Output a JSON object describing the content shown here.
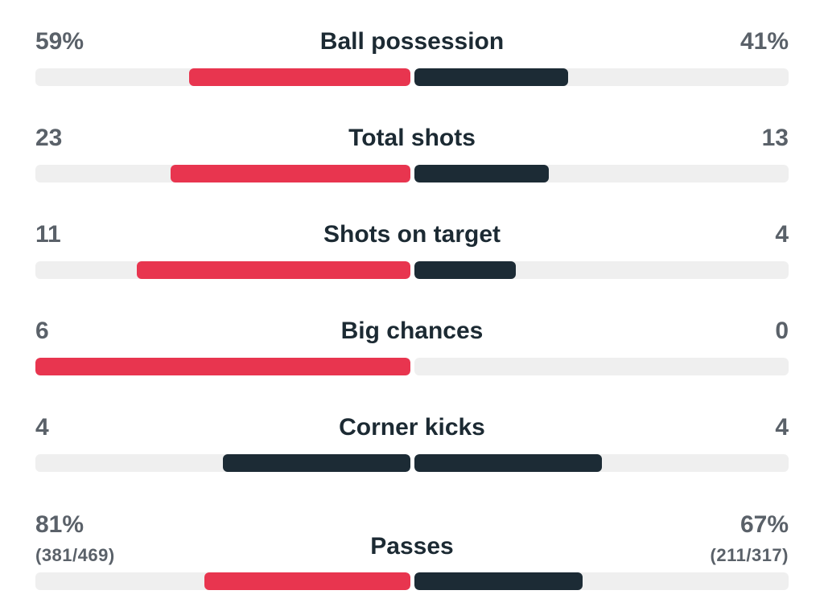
{
  "colors": {
    "home": "#e8354f",
    "away": "#1c2b35",
    "track": "#efefef"
  },
  "stats": [
    {
      "label": "Ball possession",
      "home_value": "59%",
      "away_value": "41%",
      "home_bar": 0.59,
      "away_bar": 0.41,
      "home_color": "#e8354f",
      "away_color": "#1c2b35"
    },
    {
      "label": "Total shots",
      "home_value": "23",
      "away_value": "13",
      "home_bar": 0.64,
      "away_bar": 0.36,
      "home_color": "#e8354f",
      "away_color": "#1c2b35"
    },
    {
      "label": "Shots on target",
      "home_value": "11",
      "away_value": "4",
      "home_bar": 0.73,
      "away_bar": 0.27,
      "home_color": "#e8354f",
      "away_color": "#1c2b35"
    },
    {
      "label": "Big chances",
      "home_value": "6",
      "away_value": "0",
      "home_bar": 1.0,
      "away_bar": 0.0,
      "home_color": "#e8354f",
      "away_color": "#1c2b35"
    },
    {
      "label": "Corner kicks",
      "home_value": "4",
      "away_value": "4",
      "home_bar": 0.5,
      "away_bar": 0.5,
      "home_color": "#1c2b35",
      "away_color": "#1c2b35"
    },
    {
      "label": "Passes",
      "home_value": "81%",
      "away_value": "67%",
      "home_detail": "(381/469)",
      "away_detail": "(211/317)",
      "home_bar": 0.55,
      "away_bar": 0.45,
      "home_color": "#e8354f",
      "away_color": "#1c2b35"
    }
  ]
}
